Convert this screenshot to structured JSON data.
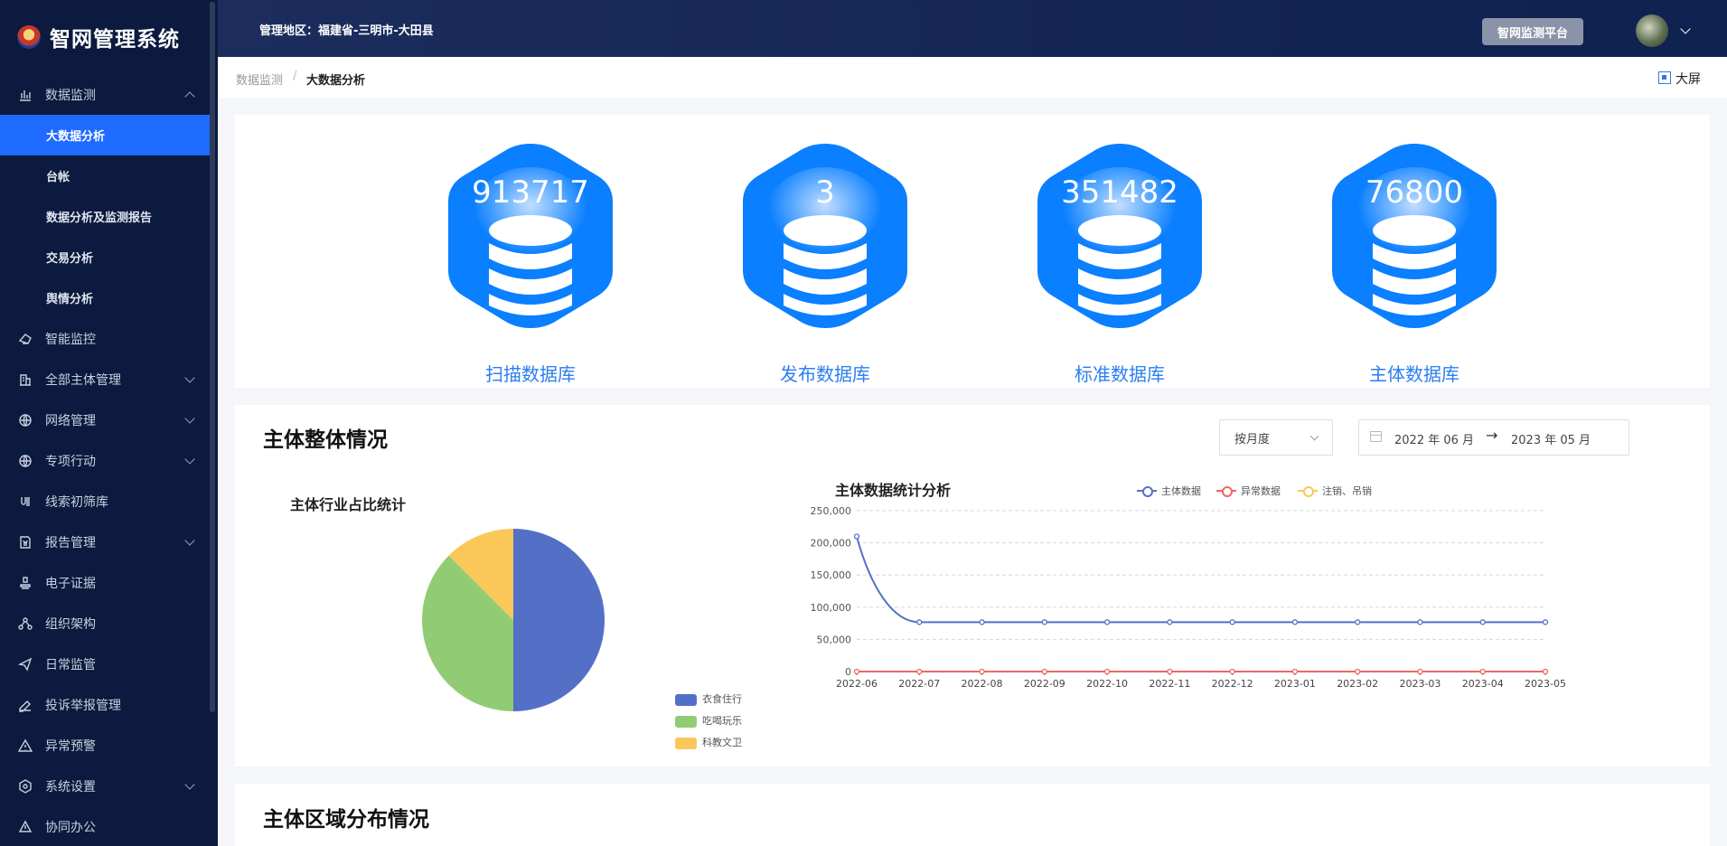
{
  "app": {
    "title": "智网管理系统"
  },
  "sidebar": {
    "groups": [
      {
        "label": "数据监测",
        "icon": "bar-chart-icon",
        "expanded": true,
        "children": [
          {
            "label": "大数据分析",
            "active": true
          },
          {
            "label": "台帐",
            "active": false
          },
          {
            "label": "数据分析及监测报告",
            "active": false
          },
          {
            "label": "交易分析",
            "active": false
          },
          {
            "label": "舆情分析",
            "active": false
          }
        ]
      },
      {
        "label": "智能监控",
        "icon": "monitor-icon",
        "has_children": false
      },
      {
        "label": "全部主体管理",
        "icon": "building-icon",
        "has_children": true
      },
      {
        "label": "网络管理",
        "icon": "globe-icon",
        "has_children": true
      },
      {
        "label": "专项行动",
        "icon": "globe-icon",
        "has_children": true
      },
      {
        "label": "线索初筛库",
        "icon": "clue-icon",
        "has_children": false
      },
      {
        "label": "报告管理",
        "icon": "report-icon",
        "has_children": true
      },
      {
        "label": "电子证据",
        "icon": "stamp-icon",
        "has_children": false
      },
      {
        "label": "组织架构",
        "icon": "org-icon",
        "has_children": false
      },
      {
        "label": "日常监管",
        "icon": "send-icon",
        "has_children": false
      },
      {
        "label": "投诉举报管理",
        "icon": "edit-icon",
        "has_children": false
      },
      {
        "label": "异常预警",
        "icon": "warning-icon",
        "has_children": false
      },
      {
        "label": "系统设置",
        "icon": "settings-icon",
        "has_children": true
      },
      {
        "label": "协同办公",
        "icon": "collab-icon",
        "has_children": false
      }
    ]
  },
  "header": {
    "region_label": "管理地区：福建省-三明市-大田县",
    "platform_button": "智网监测平台"
  },
  "breadcrumb": {
    "parent": "数据监测",
    "separator": "/",
    "current": "大数据分析",
    "fullscreen_label": "大屏"
  },
  "stats": [
    {
      "value": "913717",
      "label": "扫描数据库"
    },
    {
      "value": "3",
      "label": "发布数据库"
    },
    {
      "value": "351482",
      "label": "标准数据库"
    },
    {
      "value": "76800",
      "label": "主体数据库"
    }
  ],
  "overview": {
    "title": "主体整体情况",
    "period_select": "按月度",
    "date_start": "2022 年 06 月",
    "date_arrow": "→",
    "date_end": "2023 年 05 月"
  },
  "region_section": {
    "title": "主体区域分布情况"
  },
  "colors": {
    "accent": "#1f6bff",
    "sidebar_bg": "#0b1a3e",
    "pie_blue": "#5470c6",
    "pie_green": "#91cc75",
    "pie_yellow": "#fac858",
    "line_red": "#ee6666"
  },
  "chart_data": [
    {
      "type": "pie",
      "title": "主体行业占比统计",
      "categories": [
        "衣食住行",
        "吃喝玩乐",
        "科教文卫"
      ],
      "values": [
        50,
        37.5,
        12.5
      ],
      "colors": [
        "#5470c6",
        "#91cc75",
        "#fac858"
      ],
      "legend": "bottom-right"
    },
    {
      "type": "line",
      "title": "主体数据统计分析",
      "categories": [
        "2022-06",
        "2022-07",
        "2022-08",
        "2022-09",
        "2022-10",
        "2022-11",
        "2022-12",
        "2023-01",
        "2023-02",
        "2023-03",
        "2023-04",
        "2023-05"
      ],
      "series": [
        {
          "name": "主体数据",
          "color": "#5470c6",
          "values": [
            210000,
            76800,
            76800,
            76800,
            76800,
            76800,
            76800,
            76800,
            76800,
            76800,
            76800,
            76800
          ]
        },
        {
          "name": "异常数据",
          "color": "#ee6666",
          "values": [
            0,
            0,
            0,
            0,
            0,
            0,
            0,
            0,
            0,
            0,
            0,
            0
          ]
        },
        {
          "name": "注销、吊销",
          "color": "#fac858",
          "values": [
            0,
            0,
            0,
            0,
            0,
            0,
            0,
            0,
            0,
            0,
            0,
            0
          ]
        }
      ],
      "yticks": [
        "0",
        "50,000",
        "100,000",
        "150,000",
        "200,000",
        "250,000"
      ],
      "ylim": [
        0,
        250000
      ],
      "grid": true,
      "legend": "top"
    }
  ]
}
